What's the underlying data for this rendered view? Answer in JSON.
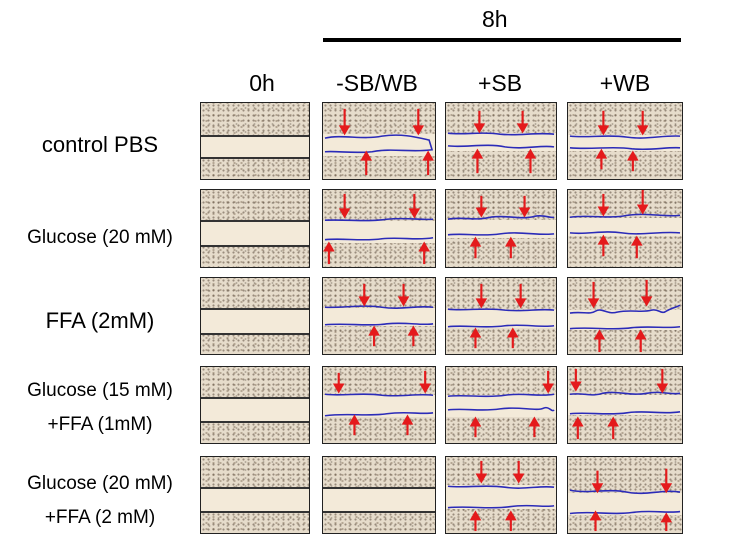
{
  "header": {
    "time_label": "8h"
  },
  "columns": [
    {
      "label": "0h"
    },
    {
      "label": "-SB/WB"
    },
    {
      "label": "+SB"
    },
    {
      "label": "+WB"
    }
  ],
  "rows": [
    {
      "lines": [
        "control PBS"
      ]
    },
    {
      "lines": [
        "Glucose (20 mM)"
      ]
    },
    {
      "lines": [
        "FFA (2mM)"
      ]
    },
    {
      "lines": [
        "Glucose (15 mM)",
        "+FFA (1mM)"
      ]
    },
    {
      "lines": [
        "Glucose (20 mM)",
        "+FFA (2 mM)"
      ]
    }
  ],
  "colors": {
    "arrow": "#e41a1c",
    "migration_front": "#2b2bb8",
    "wound_area": "#f3ead9",
    "cell_layer": "#e6dccb"
  }
}
